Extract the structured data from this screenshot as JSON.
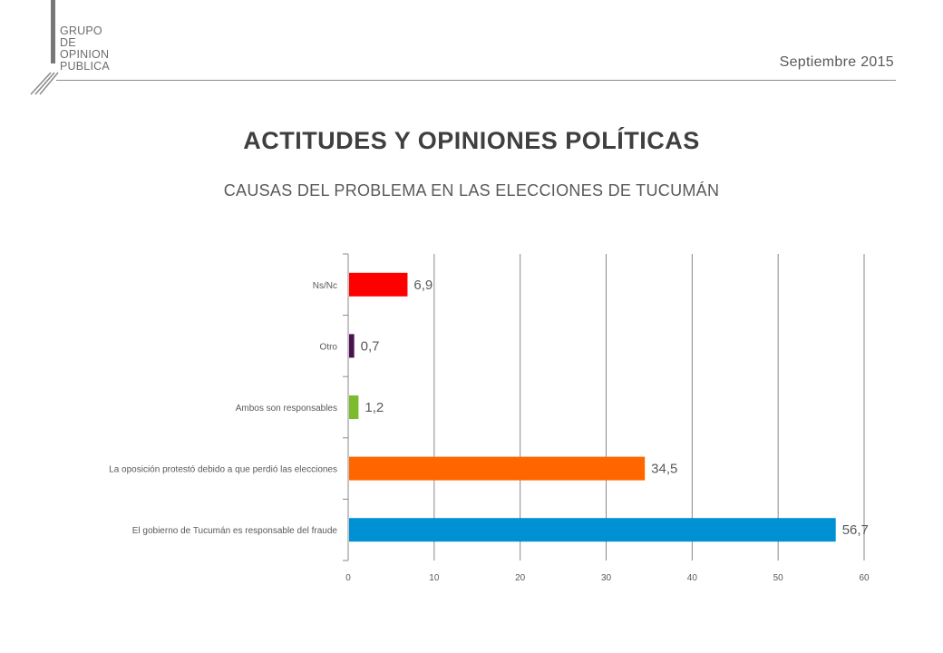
{
  "header": {
    "logo_lines": [
      "GRUPO",
      "DE",
      "OPINION",
      "PUBLICA"
    ],
    "date": "Septiembre 2015"
  },
  "title": "ACTITUDES Y OPINIONES POLÍTICAS",
  "subtitle": "CAUSAS DEL PROBLEMA EN LAS ELECCIONES DE TUCUMÁN",
  "chart_data": {
    "type": "bar",
    "orientation": "horizontal",
    "categories": [
      "Ns/Nc",
      "Otro",
      "Ambos son responsables",
      "La oposición protestó debido a que perdió las elecciones",
      "El gobierno de Tucumán es responsable del fraude"
    ],
    "values": [
      6.9,
      0.7,
      1.2,
      34.5,
      56.7
    ],
    "value_labels": [
      "6,9",
      "0,7",
      "1,2",
      "34,5",
      "56,7"
    ],
    "colors": [
      "#ff0000",
      "#4b1150",
      "#7dbb2e",
      "#ff6600",
      "#0090d4"
    ],
    "xlim": [
      0,
      60
    ],
    "xticks": [
      0,
      10,
      20,
      30,
      40,
      50,
      60
    ],
    "grid": true,
    "legend": "none"
  }
}
